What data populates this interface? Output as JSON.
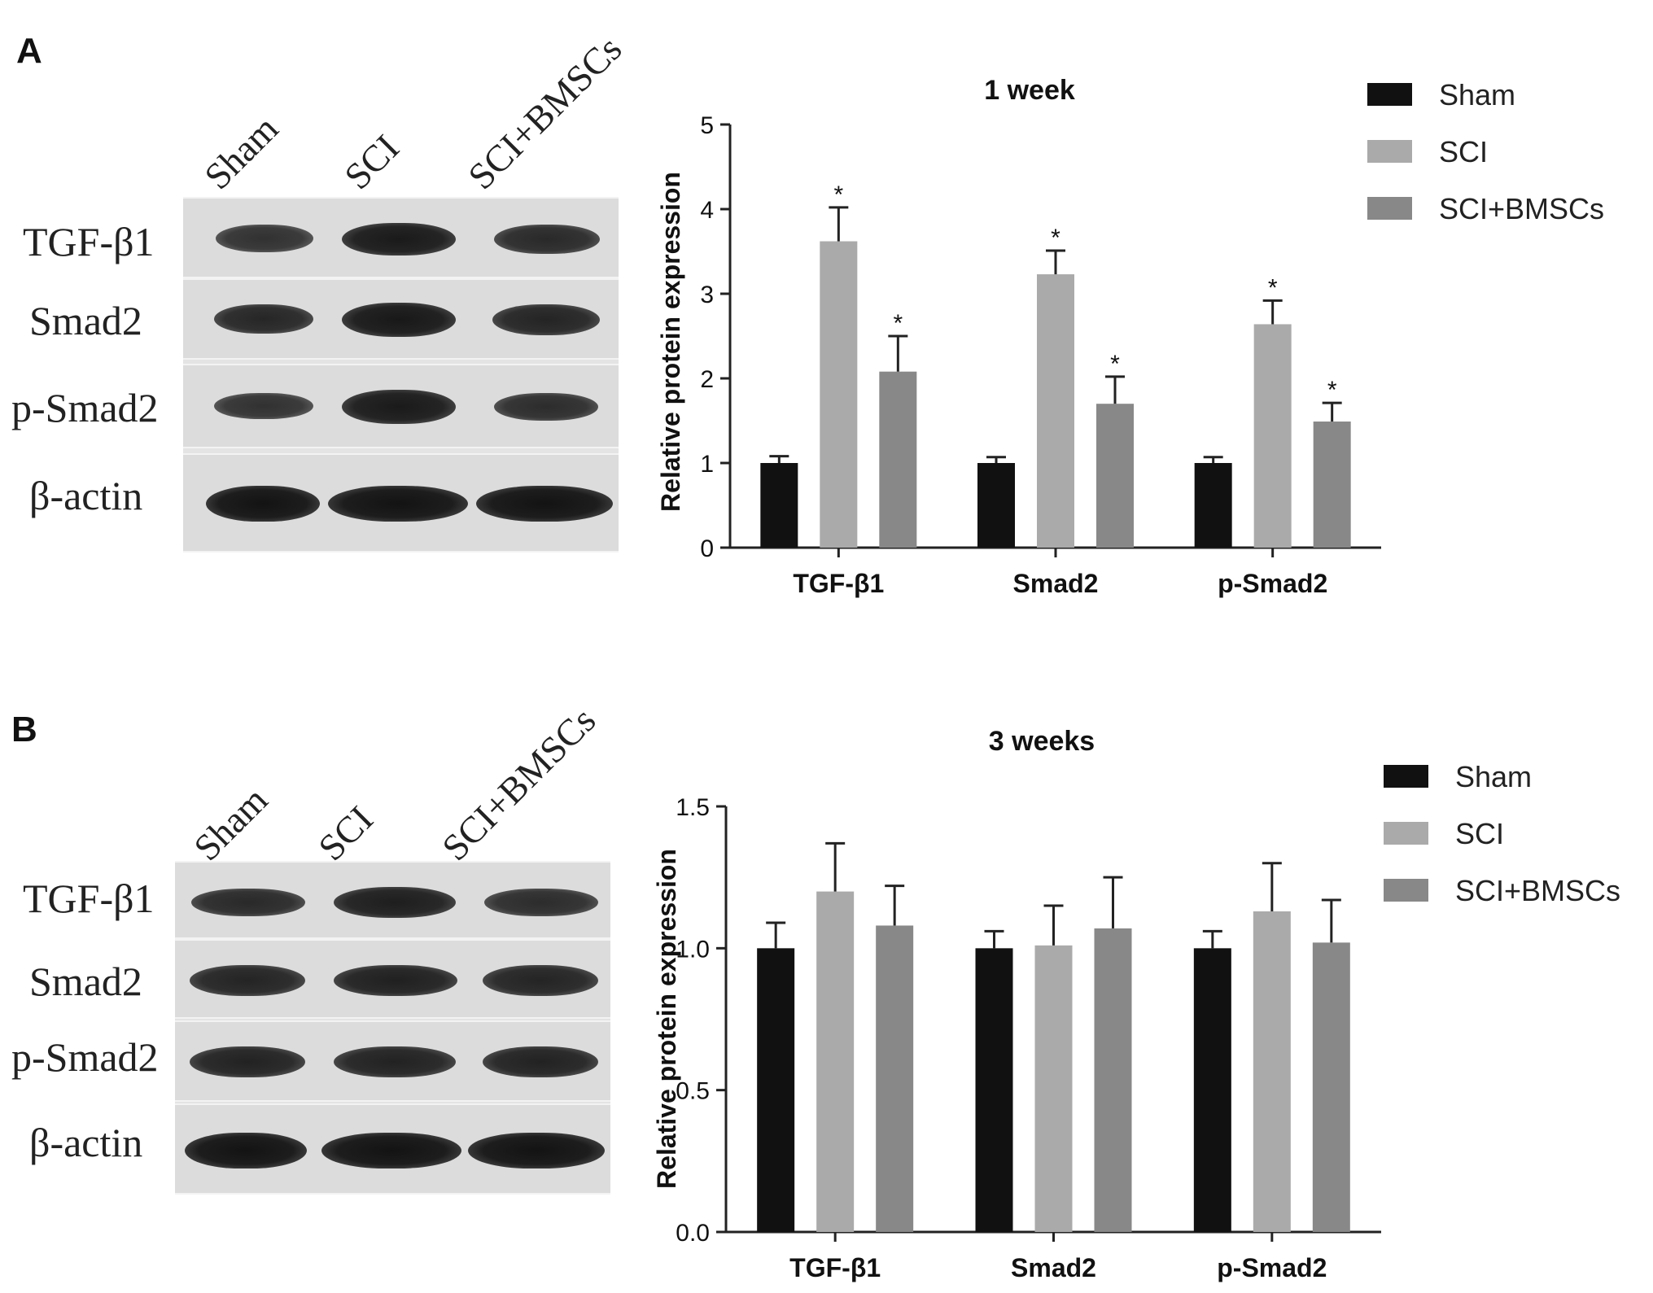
{
  "panels": [
    {
      "letter": "A",
      "lanes": [
        "Sham",
        "SCI",
        "SCI+BMSCs"
      ],
      "blot_rows": [
        "TGF-β1",
        "Smad2",
        "p-Smad2",
        "β-actin"
      ],
      "band_intensity": [
        [
          0.55,
          0.85,
          0.65
        ],
        [
          0.7,
          0.88,
          0.72
        ],
        [
          0.55,
          0.85,
          0.62
        ],
        [
          0.95,
          0.95,
          0.95
        ]
      ]
    },
    {
      "letter": "B",
      "lanes": [
        "Sham",
        "SCI",
        "SCI+BMSCs"
      ],
      "blot_rows": [
        "TGF-β1",
        "Smad2",
        "p-Smad2",
        "β-actin"
      ],
      "band_intensity": [
        [
          0.65,
          0.8,
          0.62
        ],
        [
          0.72,
          0.78,
          0.72
        ],
        [
          0.75,
          0.75,
          0.75
        ],
        [
          0.95,
          0.95,
          0.95
        ]
      ]
    }
  ],
  "chart_data": [
    {
      "type": "bar",
      "title": "1 week",
      "xlabel": "",
      "ylabel": "Relative protein expression",
      "categories": [
        "TGF-β1",
        "Smad2",
        "p-Smad2"
      ],
      "ylim": [
        0,
        5
      ],
      "yticks": [
        0,
        1,
        2,
        3,
        4,
        5
      ],
      "ytick_labels": [
        "0",
        "1",
        "2",
        "3",
        "4",
        "5"
      ],
      "series": [
        {
          "name": "Sham",
          "color": "#111111",
          "values": [
            1.0,
            1.0,
            1.0
          ],
          "errors": [
            0.08,
            0.07,
            0.07
          ],
          "sig": [
            false,
            false,
            false
          ]
        },
        {
          "name": "SCI",
          "color": "#aaaaaa",
          "values": [
            3.62,
            3.23,
            2.64
          ],
          "errors": [
            0.4,
            0.28,
            0.28
          ],
          "sig": [
            true,
            true,
            true
          ]
        },
        {
          "name": "SCI+BMSCs",
          "color": "#888888",
          "values": [
            2.08,
            1.7,
            1.49
          ],
          "errors": [
            0.42,
            0.32,
            0.22
          ],
          "sig": [
            true,
            true,
            true
          ]
        }
      ],
      "significance_marker": "*",
      "grid": false,
      "legend_position": "top-right"
    },
    {
      "type": "bar",
      "title": "3 weeks",
      "xlabel": "",
      "ylabel": "Relative protein expression",
      "categories": [
        "TGF-β1",
        "Smad2",
        "p-Smad2"
      ],
      "ylim": [
        0,
        1.5
      ],
      "yticks": [
        0,
        0.5,
        1.0,
        1.5
      ],
      "ytick_labels": [
        "0.0",
        "0.5",
        "1.0",
        "1.5"
      ],
      "series": [
        {
          "name": "Sham",
          "color": "#111111",
          "values": [
            1.0,
            1.0,
            1.0
          ],
          "errors": [
            0.09,
            0.06,
            0.06
          ],
          "sig": [
            false,
            false,
            false
          ]
        },
        {
          "name": "SCI",
          "color": "#aaaaaa",
          "values": [
            1.2,
            1.01,
            1.13
          ],
          "errors": [
            0.17,
            0.14,
            0.17
          ],
          "sig": [
            false,
            false,
            false
          ]
        },
        {
          "name": "SCI+BMSCs",
          "color": "#888888",
          "values": [
            1.08,
            1.07,
            1.02
          ],
          "errors": [
            0.14,
            0.18,
            0.15
          ],
          "sig": [
            false,
            false,
            false
          ]
        }
      ],
      "grid": false,
      "legend_position": "top-right"
    }
  ]
}
